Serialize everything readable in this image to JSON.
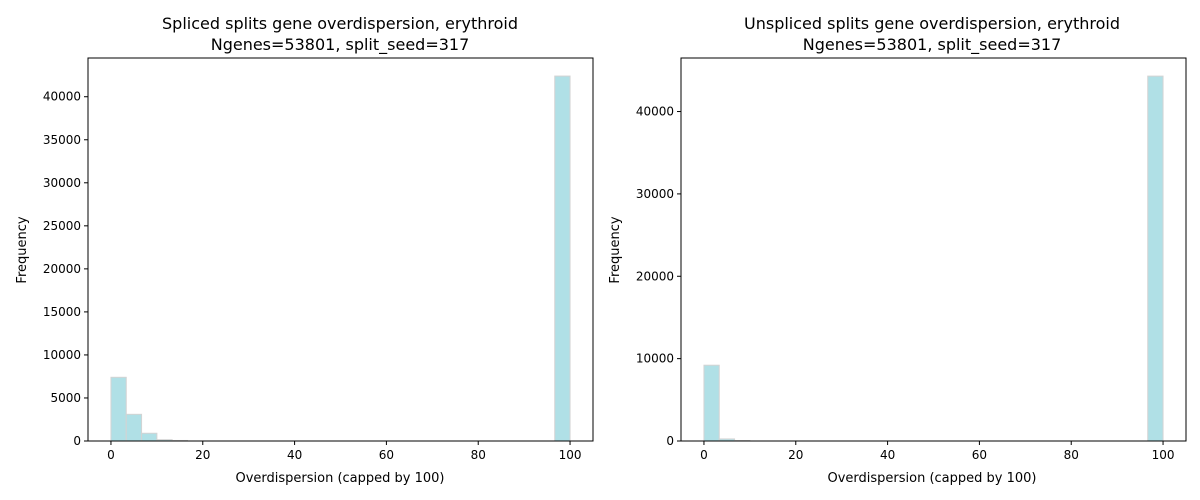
{
  "chart_data": [
    {
      "type": "bar",
      "title": "Spliced splits gene overdispersion, erythroid",
      "subtitle": "Ngenes=53801, split_seed=317",
      "xlabel": "Overdispersion (capped by 100)",
      "ylabel": "Frequency",
      "xlim": [
        -5,
        105
      ],
      "ylim": [
        0,
        44500
      ],
      "xticks": [
        0,
        20,
        40,
        60,
        80,
        100
      ],
      "yticks": [
        0,
        5000,
        10000,
        15000,
        20000,
        25000,
        30000,
        35000,
        40000
      ],
      "bins": [
        {
          "x0": 0.0,
          "x1": 3.33,
          "value": 7400
        },
        {
          "x0": 3.33,
          "x1": 6.67,
          "value": 3100
        },
        {
          "x0": 6.67,
          "x1": 10.0,
          "value": 900
        },
        {
          "x0": 10.0,
          "x1": 13.33,
          "value": 150
        },
        {
          "x0": 13.33,
          "x1": 16.67,
          "value": 60
        },
        {
          "x0": 96.67,
          "x1": 100.0,
          "value": 42400
        }
      ]
    },
    {
      "type": "bar",
      "title": "Unspliced splits gene overdispersion, erythroid",
      "subtitle": "Ngenes=53801, split_seed=317",
      "xlabel": "Overdispersion (capped by 100)",
      "ylabel": "Frequency",
      "xlim": [
        -5,
        105
      ],
      "ylim": [
        0,
        46500
      ],
      "xticks": [
        0,
        20,
        40,
        60,
        80,
        100
      ],
      "yticks": [
        0,
        10000,
        20000,
        30000,
        40000
      ],
      "bins": [
        {
          "x0": 0.0,
          "x1": 3.33,
          "value": 9200
        },
        {
          "x0": 3.33,
          "x1": 6.67,
          "value": 250
        },
        {
          "x0": 6.67,
          "x1": 10.0,
          "value": 60
        },
        {
          "x0": 96.67,
          "x1": 100.0,
          "value": 44300
        }
      ]
    }
  ]
}
